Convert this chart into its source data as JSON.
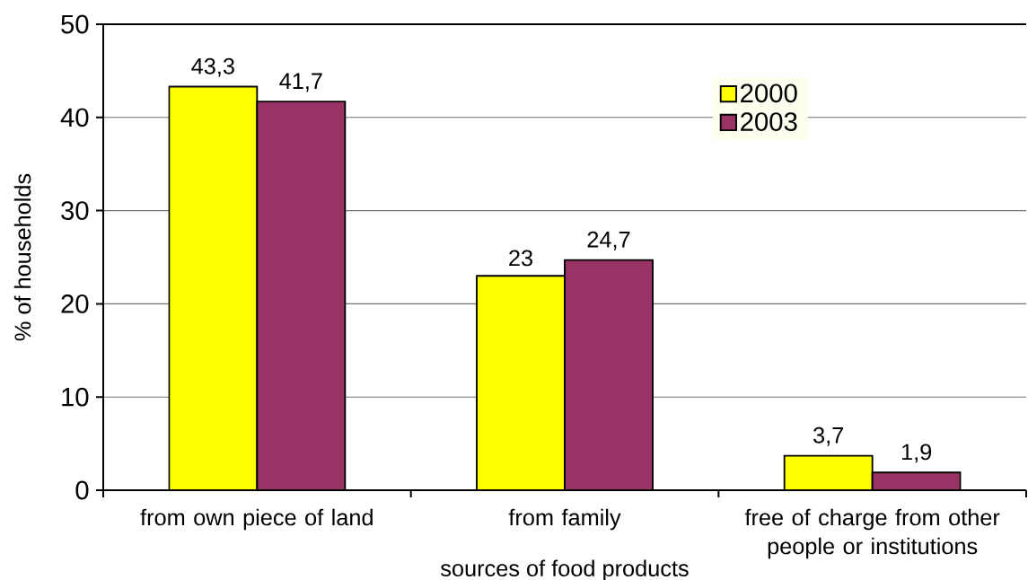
{
  "chart_data": {
    "type": "bar",
    "xlabel": "sources of food products",
    "ylabel": "% of households",
    "categories": [
      "from own piece of land",
      "from family",
      "free of charge from other people or institutions"
    ],
    "series": [
      {
        "name": "2000",
        "color": "#ffff00",
        "values": [
          43.3,
          23,
          3.7
        ],
        "value_labels": [
          "43,3",
          "23",
          "3,7"
        ]
      },
      {
        "name": "2003",
        "color": "#993366",
        "values": [
          41.7,
          24.7,
          1.9
        ],
        "value_labels": [
          "41,7",
          "24,7",
          "1,9"
        ]
      }
    ],
    "ylim": [
      0,
      50
    ],
    "yticks": [
      0,
      10,
      20,
      30,
      40,
      50
    ],
    "grid": "y",
    "legend": "top right"
  }
}
